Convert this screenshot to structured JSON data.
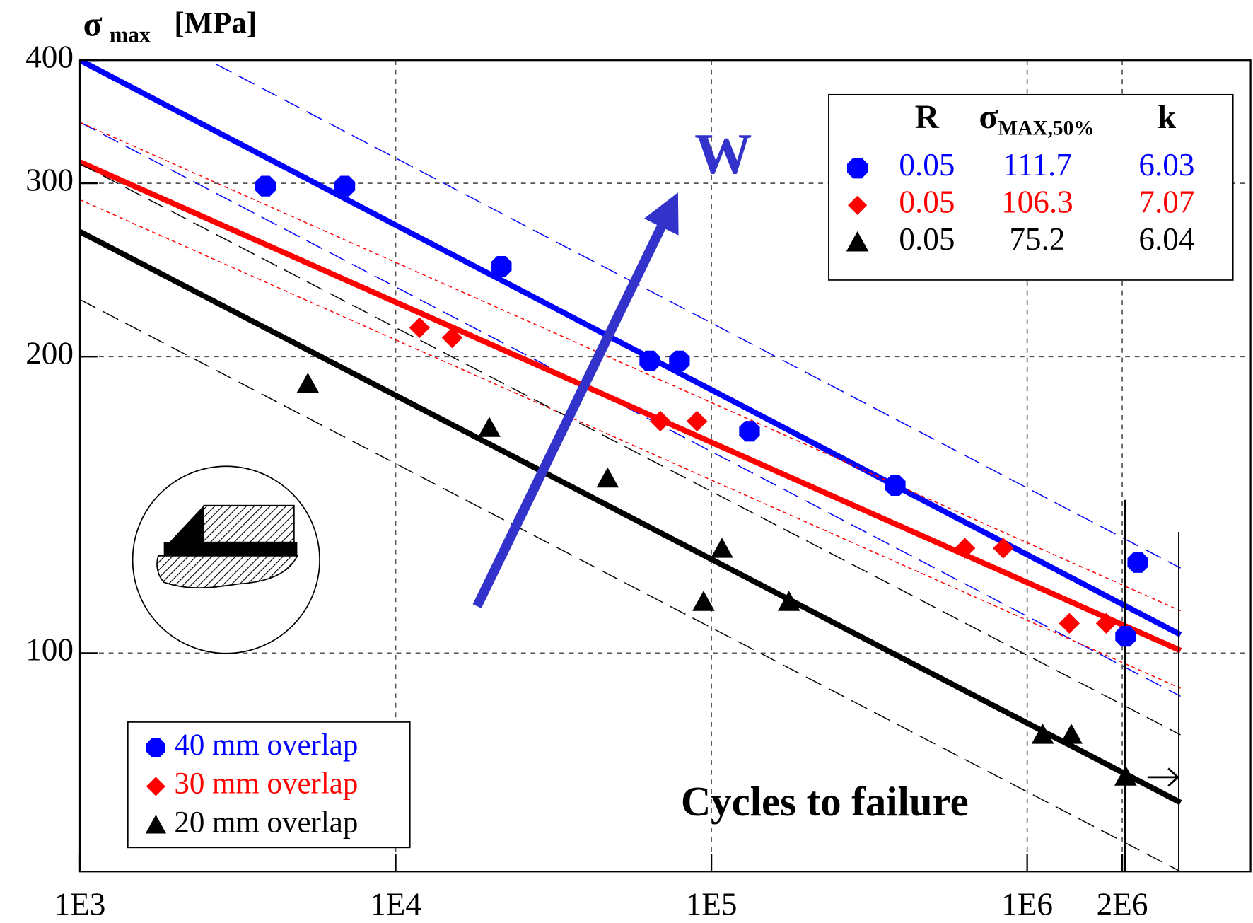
{
  "chart_data": {
    "type": "scatter",
    "y_label": "σ",
    "y_label_sub": "max",
    "y_unit": "[MPa]",
    "x_label": "Cycles to failure",
    "annotation": "W",
    "log_x": true,
    "log_y": true,
    "grid": true,
    "legend_position": "lower left",
    "xlim": [
      1000,
      5100000
    ],
    "ylim": [
      60,
      400
    ],
    "xticks": [
      {
        "value": 1000,
        "label": "1E3"
      },
      {
        "value": 10000,
        "label": "1E4"
      },
      {
        "value": 100000,
        "label": "1E5"
      },
      {
        "value": 1000000,
        "label": "1E6"
      },
      {
        "value": 2000000,
        "label": "2E6"
      }
    ],
    "yticks": [
      100,
      200,
      300,
      400
    ],
    "series": [
      {
        "name": "40 mm overlap",
        "color": "#0000ff",
        "marker": "octagon",
        "x": [
          3870,
          6900,
          21600,
          63800,
          79200,
          132000,
          382000,
          2050000,
          2240000
        ],
        "y": [
          298,
          298,
          247,
          198,
          198,
          168,
          148,
          104,
          123.6
        ],
        "fit": {
          "x": [
            1000,
            3060000
          ],
          "y": [
            400,
            104.4
          ]
        },
        "bands": [
          {
            "x": [
              1000,
              3060000
            ],
            "y": [
              468,
              122
            ]
          },
          {
            "x": [
              1000,
              3060000
            ],
            "y": [
              346,
              90.4
            ]
          }
        ],
        "band_dash": "long"
      },
      {
        "name": "30 mm overlap",
        "color": "#ff0000",
        "marker": "diamond",
        "x": [
          11900,
          15100,
          68900,
          90000,
          635000,
          840000,
          1360000,
          1780000
        ],
        "y": [
          214,
          209,
          172,
          172,
          127.8,
          127.8,
          107.2,
          107.2
        ],
        "fit": {
          "x": [
            1000,
            3060000
          ],
          "y": [
            315.3,
            100.6
          ]
        },
        "bands": [
          {
            "x": [
              1000,
              3060000
            ],
            "y": [
              346,
              110.4
            ]
          },
          {
            "x": [
              1000,
              3060000
            ],
            "y": [
              288.7,
              92.1
            ]
          }
        ],
        "band_dash": "short"
      },
      {
        "name": "20 mm overlap",
        "color": "#000000",
        "marker": "triangle",
        "x": [
          5270,
          19800,
          46900,
          94400,
          108000,
          176000,
          1120000,
          1380000,
          2050000
        ],
        "y": [
          187.7,
          169.3,
          150.4,
          112.7,
          127.6,
          112.7,
          82.6,
          82.6,
          74.9
        ],
        "fit": {
          "x": [
            1000,
            3060000
          ],
          "y": [
            267.9,
            70.5
          ]
        },
        "bands": [
          {
            "x": [
              1000,
              3060000
            ],
            "y": [
              314,
              82.6
            ]
          },
          {
            "x": [
              1000,
              3060000
            ],
            "y": [
              228.6,
              60
            ]
          }
        ],
        "band_dash": "long"
      }
    ],
    "table": {
      "headers": [
        {
          "text": "R"
        },
        {
          "text": "σ",
          "sub": "MAX,50%"
        },
        {
          "text": "k"
        }
      ],
      "rows": [
        [
          0.05,
          111.7,
          6.03
        ],
        [
          0.05,
          106.3,
          7.07
        ],
        [
          0.05,
          75.2,
          6.04
        ]
      ]
    }
  }
}
